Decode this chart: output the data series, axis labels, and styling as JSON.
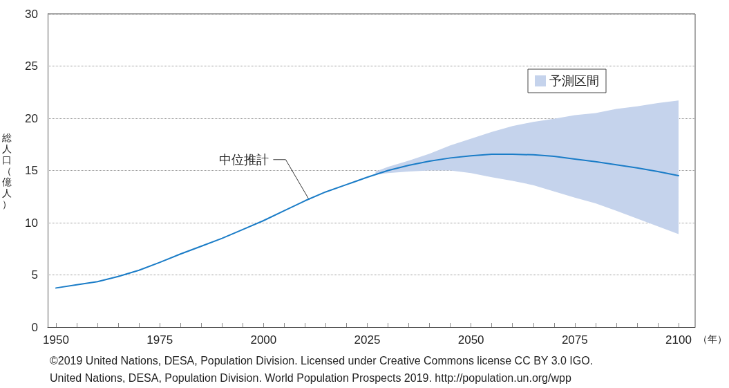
{
  "chart_data": {
    "type": "line",
    "ylabel": "総人口（億人）",
    "xlabel": "（年）",
    "xlim": [
      1948,
      2104
    ],
    "xticks": [
      1950,
      {
        "value": 1955,
        "label": null
      },
      {
        "value": 1960,
        "label": null
      },
      {
        "value": 1965,
        "label": null
      },
      {
        "value": 1970,
        "label": null
      },
      1975,
      {
        "value": 1980,
        "label": null
      },
      {
        "value": 1985,
        "label": null
      },
      {
        "value": 1990,
        "label": null
      },
      {
        "value": 1995,
        "label": null
      },
      2000,
      {
        "value": 2005,
        "label": null
      },
      {
        "value": 2010,
        "label": null
      },
      {
        "value": 2015,
        "label": null
      },
      {
        "value": 2020,
        "label": null
      },
      2025,
      {
        "value": 2030,
        "label": null
      },
      {
        "value": 2035,
        "label": null
      },
      {
        "value": 2040,
        "label": null
      },
      {
        "value": 2045,
        "label": null
      },
      2050,
      {
        "value": 2055,
        "label": null
      },
      {
        "value": 2060,
        "label": null
      },
      {
        "value": 2065,
        "label": null
      },
      {
        "value": 2070,
        "label": null
      },
      2075,
      {
        "value": 2080,
        "label": null
      },
      {
        "value": 2085,
        "label": null
      },
      {
        "value": 2090,
        "label": null
      },
      {
        "value": 2095,
        "label": null
      },
      2100
    ],
    "ylim": [
      0,
      30
    ],
    "yticks": [
      0,
      5,
      10,
      15,
      20,
      25,
      30
    ],
    "grid": "y",
    "legend": "top right",
    "marker": "none",
    "line_style": "solid",
    "series": [
      {
        "color": "#1a7cc7",
        "x": [
          1950,
          1955,
          1960,
          1965,
          1970,
          1975,
          1980,
          1985,
          1990,
          1995,
          2000,
          2005,
          2010,
          2015,
          2020,
          2025,
          2030,
          2035,
          2040,
          2045,
          2050,
          2055,
          2060,
          2065,
          2070,
          2075,
          2080,
          2085,
          2090,
          2095,
          2100
        ],
        "values": [
          3.75,
          4.05,
          4.35,
          4.85,
          5.45,
          6.2,
          7.0,
          7.75,
          8.5,
          9.35,
          10.2,
          11.15,
          12.1,
          12.95,
          13.65,
          14.35,
          15.0,
          15.5,
          15.9,
          16.2,
          16.4,
          16.55,
          16.55,
          16.5,
          16.35,
          16.1,
          15.85,
          15.55,
          15.25,
          14.9,
          14.5
        ]
      },
      {
        "type": "area",
        "name": "予測区間",
        "color": "#c5d3ec",
        "x": [
          2027,
          2030,
          2035,
          2040,
          2045,
          2050,
          2055,
          2060,
          2065,
          2070,
          2075,
          2080,
          2085,
          2090,
          2095,
          2100
        ],
        "values": [
          null,
          null,
          null,
          null,
          null,
          null,
          null,
          null,
          null,
          null,
          null,
          null,
          null,
          null,
          null,
          null
        ],
        "lower": [
          14.6,
          14.75,
          14.9,
          15.0,
          15.0,
          14.75,
          14.35,
          14.0,
          13.6,
          13.0,
          12.4,
          11.85,
          11.15,
          10.4,
          9.65,
          8.9
        ],
        "upper": [
          14.9,
          15.35,
          15.95,
          16.6,
          17.4,
          18.05,
          18.7,
          19.25,
          19.65,
          19.95,
          20.3,
          20.5,
          20.9,
          21.15,
          21.45,
          21.7
        ]
      }
    ],
    "annotations": [
      {
        "text": "中位推計",
        "x": 2011,
        "y": 12.2
      },
      "©2019 United Nations, DESA, Population Division. Licensed under Creative Commons license CC BY 3.0 IGO.",
      "United Nations, DESA, Population Division. World Population Prospects 2019. http://population.un.org/wpp"
    ]
  }
}
